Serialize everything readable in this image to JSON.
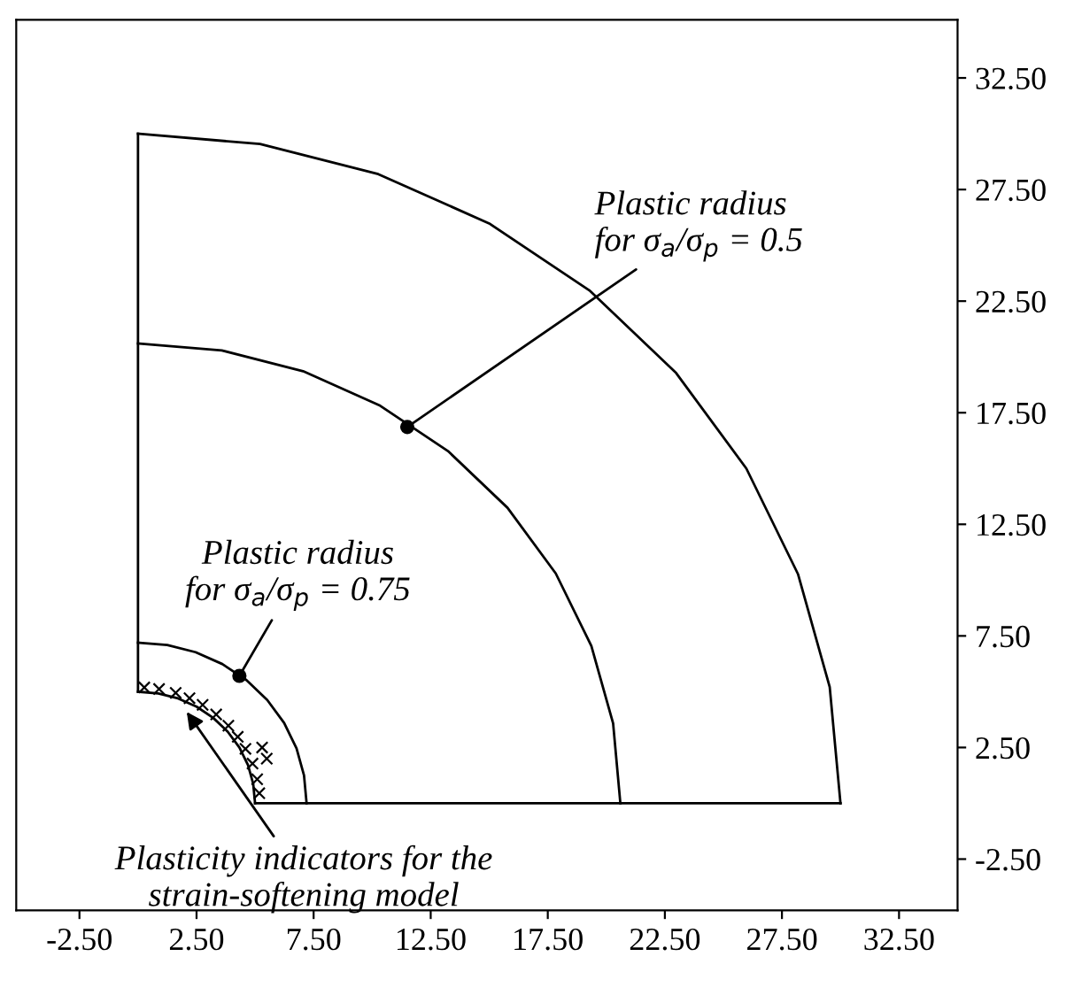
{
  "chart_data": {
    "type": "line",
    "xlim": [
      -5.2,
      35
    ],
    "ylim": [
      -4.8,
      35.1
    ],
    "xticks": [
      {
        "value": -2.5,
        "label": "-2.50"
      },
      {
        "value": 2.5,
        "label": "2.50"
      },
      {
        "value": 7.5,
        "label": "7.50"
      },
      {
        "value": 12.5,
        "label": "12.50"
      },
      {
        "value": 17.5,
        "label": "17.50"
      },
      {
        "value": 22.5,
        "label": "22.50"
      },
      {
        "value": 27.5,
        "label": "27.50"
      },
      {
        "value": 32.5,
        "label": "32.50"
      }
    ],
    "yticks": [
      {
        "value": -2.5,
        "label": "-2.50"
      },
      {
        "value": 2.5,
        "label": "2.50"
      },
      {
        "value": 7.5,
        "label": "7.50"
      },
      {
        "value": 12.5,
        "label": "12.50"
      },
      {
        "value": 17.5,
        "label": "17.50"
      },
      {
        "value": 22.5,
        "label": "22.50"
      },
      {
        "value": 27.5,
        "label": "27.50"
      },
      {
        "value": 32.5,
        "label": "32.50"
      }
    ],
    "grid": false,
    "series": [
      {
        "color": "#000000",
        "x": [
          30,
          29.54,
          28.19,
          25.98,
          22.98,
          19.28,
          15,
          10.26,
          5.21,
          0
        ],
        "values": [
          0,
          5.21,
          10.26,
          15,
          19.28,
          22.98,
          25.98,
          28.19,
          29.54,
          30
        ]
      },
      {
        "color": "#000000",
        "x": [
          20.6,
          20.29,
          19.36,
          17.84,
          15.78,
          13.24,
          10.3,
          7.05,
          3.58,
          0
        ],
        "values": [
          0,
          3.58,
          7.05,
          10.3,
          13.24,
          15.78,
          17.84,
          19.36,
          20.29,
          20.6
        ]
      },
      {
        "color": "#000000",
        "x": [
          7.2,
          7.09,
          6.77,
          6.24,
          5.52,
          4.63,
          3.6,
          2.46,
          1.25,
          0
        ],
        "values": [
          0,
          1.25,
          2.46,
          3.6,
          4.63,
          5.52,
          6.24,
          6.77,
          7.09,
          7.2
        ]
      },
      {
        "color": "#000000",
        "x": [
          5,
          4.92,
          4.7,
          4.33,
          3.83,
          3.21,
          2.5,
          1.71,
          0.87,
          0
        ],
        "values": [
          0,
          0.87,
          1.71,
          2.5,
          3.21,
          3.83,
          4.33,
          4.7,
          4.92,
          5
        ]
      },
      {
        "color": "#000000",
        "x": [
          0,
          0
        ],
        "values": [
          5,
          30
        ]
      },
      {
        "color": "#000000",
        "x": [
          5,
          30
        ],
        "values": [
          0,
          0
        ]
      },
      {
        "type": "scatter",
        "marker": "cross",
        "color": "#000000",
        "x": [
          5.18,
          5.09,
          4.89,
          4.59,
          4.26,
          3.86,
          3.34,
          2.76,
          2.2,
          1.61,
          0.9,
          0.27,
          5.5,
          5.3
        ],
        "values": [
          0.45,
          1.08,
          1.78,
          2.44,
          2.98,
          3.48,
          3.98,
          4.41,
          4.71,
          4.95,
          5.12,
          5.19,
          2.0,
          2.5
        ]
      },
      {
        "type": "scatter",
        "marker": "circle",
        "color": "#000000",
        "x": [
          11.5,
          4.33
        ],
        "values": [
          16.86,
          5.71
        ]
      }
    ],
    "annotations": [
      {
        "text": "Plastic radius\nfor σ$_{a}$/σ$_{p}$ = 0.5",
        "x": 11.5,
        "y": 16.86
      },
      {
        "text": "Plastic radius\nfor σ$_{a}$/σ$_{p}$ = 0.75",
        "x": 4.33,
        "y": 5.71
      },
      {
        "text": "Plasticity indicators for the\nstrain-softening model",
        "x": 2.08,
        "y": 4.1
      }
    ]
  }
}
